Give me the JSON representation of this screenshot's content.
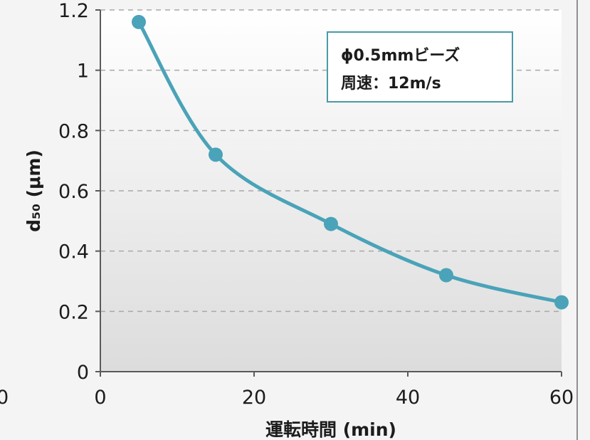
{
  "chart_data": {
    "type": "line",
    "title": "",
    "xlabel": "運転時間 (min)",
    "ylabel": "d₅₀ (μm)",
    "xlim": [
      0,
      60
    ],
    "ylim": [
      0,
      1.2
    ],
    "x_ticks": [
      "0",
      "20",
      "40",
      "60"
    ],
    "y_ticks": [
      "0",
      "0.2",
      "0.4",
      "0.6",
      "0.8",
      "1",
      "1.2"
    ],
    "grid": true,
    "series": [
      {
        "x": [
          5,
          15,
          30,
          45,
          60
        ],
        "y": [
          1.16,
          0.72,
          0.49,
          0.32,
          0.23
        ]
      }
    ],
    "annotation": {
      "lines": [
        "ϕ0.5mmビーズ",
        "周速：12m/s"
      ]
    },
    "cropped_left_tick": "0",
    "colors": {
      "series": "#4aa3b8",
      "marker": "#4aa3b8",
      "annotation_border": "#4a9aa8",
      "grid": "#a8a8a8",
      "axis": "#5a5a5a"
    }
  }
}
